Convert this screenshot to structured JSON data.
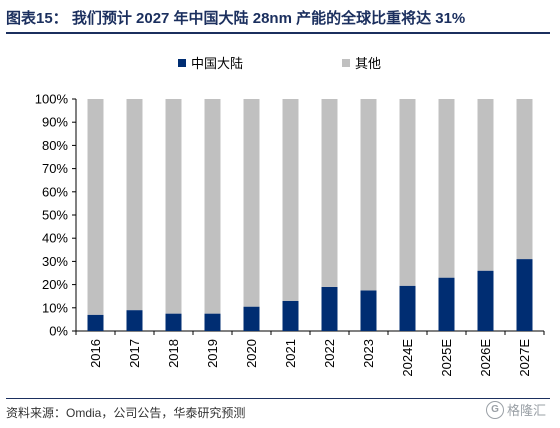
{
  "header": {
    "title": "图表15：  我们预计 2027 年中国大陆 28nm 产能的全球比重将达 31%"
  },
  "footer": {
    "source": "资料来源：Omdia，公司公告，华泰研究预测",
    "watermark_text": "格隆汇",
    "watermark_logo": "G"
  },
  "colors": {
    "series_primary": "#002d72",
    "series_other": "#c0c0c0",
    "title": "#1b2f5e"
  },
  "chart_data": {
    "type": "bar",
    "stacked": true,
    "percent": true,
    "categories": [
      "2016",
      "2017",
      "2018",
      "2019",
      "2020",
      "2021",
      "2022",
      "2023",
      "2024E",
      "2025E",
      "2026E",
      "2027E"
    ],
    "series": [
      {
        "name": "中国大陆",
        "values": [
          7,
          9,
          7.5,
          7.5,
          10.5,
          13,
          19,
          17.5,
          19.5,
          23,
          26,
          31
        ]
      },
      {
        "name": "其他",
        "values": [
          93,
          91,
          92.5,
          92.5,
          89.5,
          87,
          81,
          82.5,
          80.5,
          77,
          74,
          69
        ]
      }
    ],
    "ylim": [
      0,
      100
    ],
    "yticks": [
      "0%",
      "10%",
      "20%",
      "30%",
      "40%",
      "50%",
      "60%",
      "70%",
      "80%",
      "90%",
      "100%"
    ],
    "legend": "top-center",
    "grid": false
  }
}
